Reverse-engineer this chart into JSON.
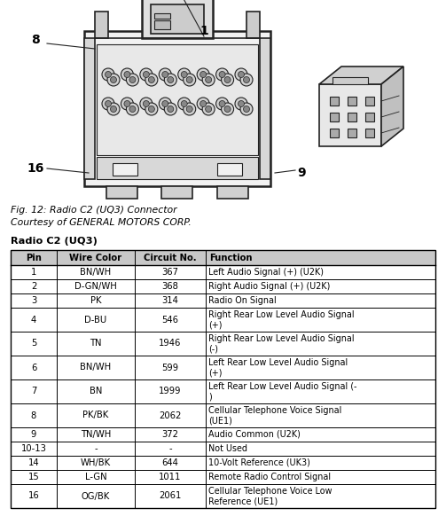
{
  "fig_caption_line1": "Fig. 12: Radio C2 (UQ3) Connector",
  "fig_caption_line2": "Courtesy of GENERAL MOTORS CORP.",
  "table_title": "Radio C2 (UQ3)",
  "headers": [
    "Pin",
    "Wire Color",
    "Circuit No.",
    "Function"
  ],
  "rows": [
    [
      "1",
      "BN/WH",
      "367",
      "Left Audio Signal (+) (U2K)"
    ],
    [
      "2",
      "D-GN/WH",
      "368",
      "Right Audio Signal (+) (U2K)"
    ],
    [
      "3",
      "PK",
      "314",
      "Radio On Signal"
    ],
    [
      "4",
      "D-BU",
      "546",
      "Right Rear Low Level Audio Signal\n(+)"
    ],
    [
      "5",
      "TN",
      "1946",
      "Right Rear Low Level Audio Signal\n(-)"
    ],
    [
      "6",
      "BN/WH",
      "599",
      "Left Rear Low Level Audio Signal\n(+)"
    ],
    [
      "7",
      "BN",
      "1999",
      "Left Rear Low Level Audio Signal (-\n)"
    ],
    [
      "8",
      "PK/BK",
      "2062",
      "Cellular Telephone Voice Signal\n(UE1)"
    ],
    [
      "9",
      "TN/WH",
      "372",
      "Audio Common (U2K)"
    ],
    [
      "10-13",
      "-",
      "-",
      "Not Used"
    ],
    [
      "14",
      "WH/BK",
      "644",
      "10-Volt Reference (UK3)"
    ],
    [
      "15",
      "L-GN",
      "1011",
      "Remote Radio Control Signal"
    ],
    [
      "16",
      "OG/BK",
      "2061",
      "Cellular Telephone Voice Low\nReference (UE1)"
    ]
  ],
  "background_color": "#ffffff",
  "header_bg": "#c8c8c8",
  "line_color": "#000000",
  "text_color": "#000000",
  "font_size_table": 7.2,
  "font_size_caption": 7.8,
  "font_size_title": 8.2
}
